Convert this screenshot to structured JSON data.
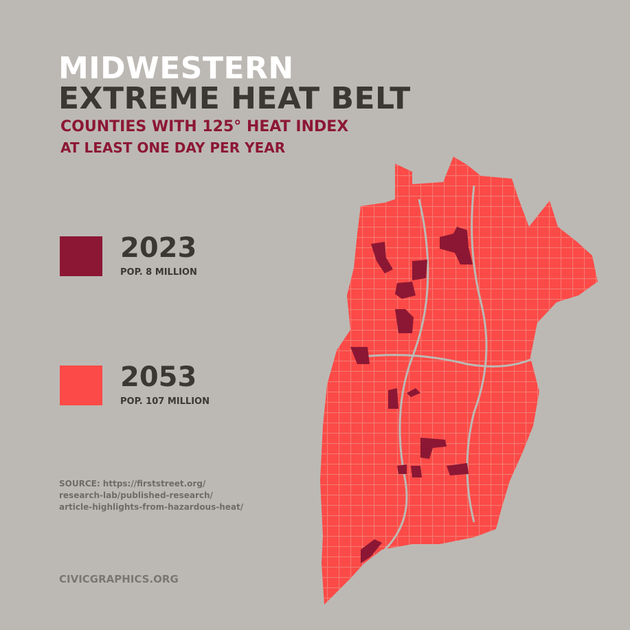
{
  "title": {
    "line1": "MIDWESTERN",
    "line2": "EXTREME HEAT BELT",
    "subtitle1": "COUNTIES WITH  125° HEAT INDEX",
    "subtitle2": "AT LEAST ONE DAY PER YEAR"
  },
  "legend": [
    {
      "year": "2023",
      "pop": "POP.  8 MILLION",
      "color": "#8c1734"
    },
    {
      "year": "2053",
      "pop": "POP. 107 MILLION",
      "color": "#fb4a47"
    }
  ],
  "source": {
    "line1": "SOURCE: https://firststreet.org/",
    "line2": "research-lab/published-research/",
    "line3": "article-highlights-from-hazardous-heat/"
  },
  "footer": "CIVICGRAPHICS.ORG"
}
